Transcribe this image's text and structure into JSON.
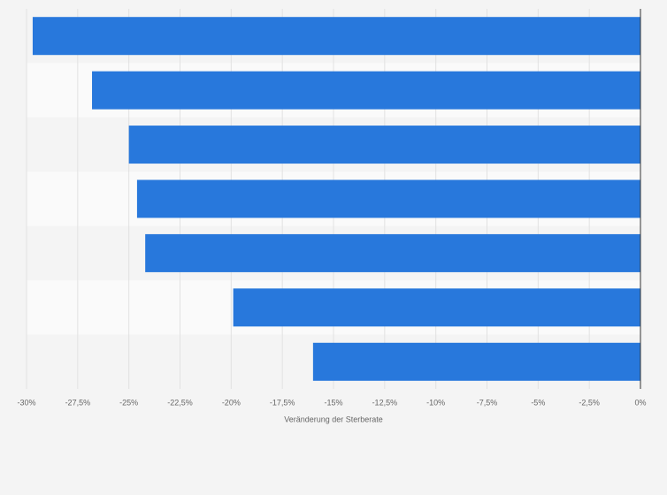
{
  "chart_data": {
    "type": "bar",
    "orientation": "horizontal",
    "xlabel": "Veränderung der Sterberate",
    "categories": [
      null,
      null,
      null,
      null,
      null,
      null,
      null
    ],
    "values": [
      -29.7,
      -26.8,
      -25.0,
      -24.6,
      -24.2,
      -19.9,
      -16.0
    ],
    "color": "#2878dc",
    "xlim": [
      -30,
      0
    ],
    "xticks": [
      {
        "value": -30,
        "label": "-30%"
      },
      {
        "value": -27.5,
        "label": "-27,5%"
      },
      {
        "value": -25,
        "label": "-25%"
      },
      {
        "value": -22.5,
        "label": "-22,5%"
      },
      {
        "value": -20,
        "label": "-20%"
      },
      {
        "value": -17.5,
        "label": "-17,5%"
      },
      {
        "value": -15,
        "label": "-15%"
      },
      {
        "value": -12.5,
        "label": "-12,5%"
      },
      {
        "value": -10,
        "label": "-10%"
      },
      {
        "value": -7.5,
        "label": "-7,5%"
      },
      {
        "value": -5,
        "label": "-5%"
      },
      {
        "value": -2.5,
        "label": "-2,5%"
      },
      {
        "value": 0,
        "label": "0%"
      }
    ],
    "grid": true
  }
}
